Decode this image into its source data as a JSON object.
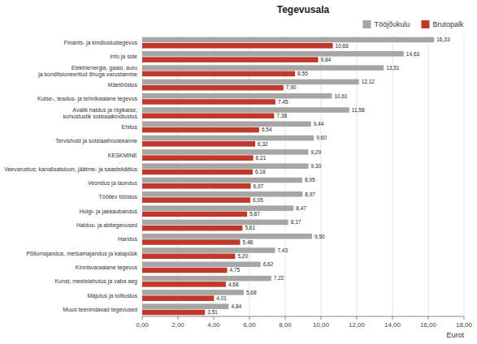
{
  "chart_data": {
    "type": "bar",
    "orientation": "horizontal",
    "title": "Tegevusala",
    "xlabel": "Eurot",
    "categories": [
      "Finants- ja kindlustustegevus",
      "Info ja side",
      "Elektrienergia, gaasi, auru\nja konditsioneeritud õhuga varustamine",
      "Mäetööstus",
      "Kutse-, teadus- ja tehnikaalane tegevus",
      "Avalik haldus ja riigikaise;\nkohustuslik sotsiaalkindlustus",
      "Ehitus",
      "Tervishold ja sotsiaalhoolekanne",
      "KESKMINE",
      "Veevarustus; kanalisatsioon, jäätme- ja saastekäitlus",
      "Veondus ja laondus",
      "Töötlev tööstus",
      "Hulgi- ja jaekaubandus",
      "Haldus- ja abitegevused",
      "Haridus",
      "Põllumajandus, metsamajandus ja kalapüük",
      "Kinnisvaraalane tegevus",
      "Kunst, meelelahutus ja vaba aeg",
      "Majutus ja toitlustus",
      "Muud teenindavad tegevused"
    ],
    "series": [
      {
        "name": "Tööjõukulu",
        "color": "#a6a6a6",
        "values": [
          16.33,
          14.63,
          13.51,
          12.12,
          10.61,
          11.58,
          9.44,
          9.6,
          9.29,
          9.3,
          8.95,
          8.97,
          8.47,
          8.17,
          9.5,
          7.43,
          6.62,
          7.22,
          5.68,
          4.84
        ],
        "value_labels": [
          "16,33",
          "14,63",
          "13,51",
          "12,12",
          "10,61",
          "11,58",
          "9,44",
          "9,60",
          "9,29",
          "9,30",
          "8,95",
          "8,97",
          "8,47",
          "8,17",
          "9,50",
          "7,43",
          "6,62",
          "7,22",
          "5,68",
          "4,84"
        ]
      },
      {
        "name": "Brutopalk",
        "color": "#c0392b",
        "values": [
          10.66,
          9.84,
          8.55,
          7.9,
          7.45,
          7.38,
          6.54,
          6.32,
          6.21,
          6.18,
          6.07,
          6.05,
          5.87,
          5.61,
          5.48,
          5.2,
          4.75,
          4.68,
          4.01,
          3.51
        ],
        "value_labels": [
          "10,66",
          "9,84",
          "8,55",
          "7,90",
          "7,45",
          "7,38",
          "6,54",
          "6,32",
          "6,21",
          "6,18",
          "6,07",
          "6,05",
          "5,87",
          "5,61",
          "5,48",
          "5,20",
          "4,75",
          "4,68",
          "4,01",
          "3,51"
        ]
      }
    ],
    "xlim": [
      0,
      18
    ],
    "xticks": [
      {
        "value": 0,
        "label": "0,00"
      },
      {
        "value": 2,
        "label": "2,00"
      },
      {
        "value": 4,
        "label": "4,00"
      },
      {
        "value": 6,
        "label": "6,00"
      },
      {
        "value": 8,
        "label": "8,00"
      },
      {
        "value": 10,
        "label": "10,00"
      },
      {
        "value": 12,
        "label": "12,00"
      },
      {
        "value": 14,
        "label": "14,00"
      },
      {
        "value": 16,
        "label": "16,00"
      },
      {
        "value": 18,
        "label": "18,00"
      }
    ],
    "grid": true,
    "legend": "upper right",
    "data_labels": true
  }
}
